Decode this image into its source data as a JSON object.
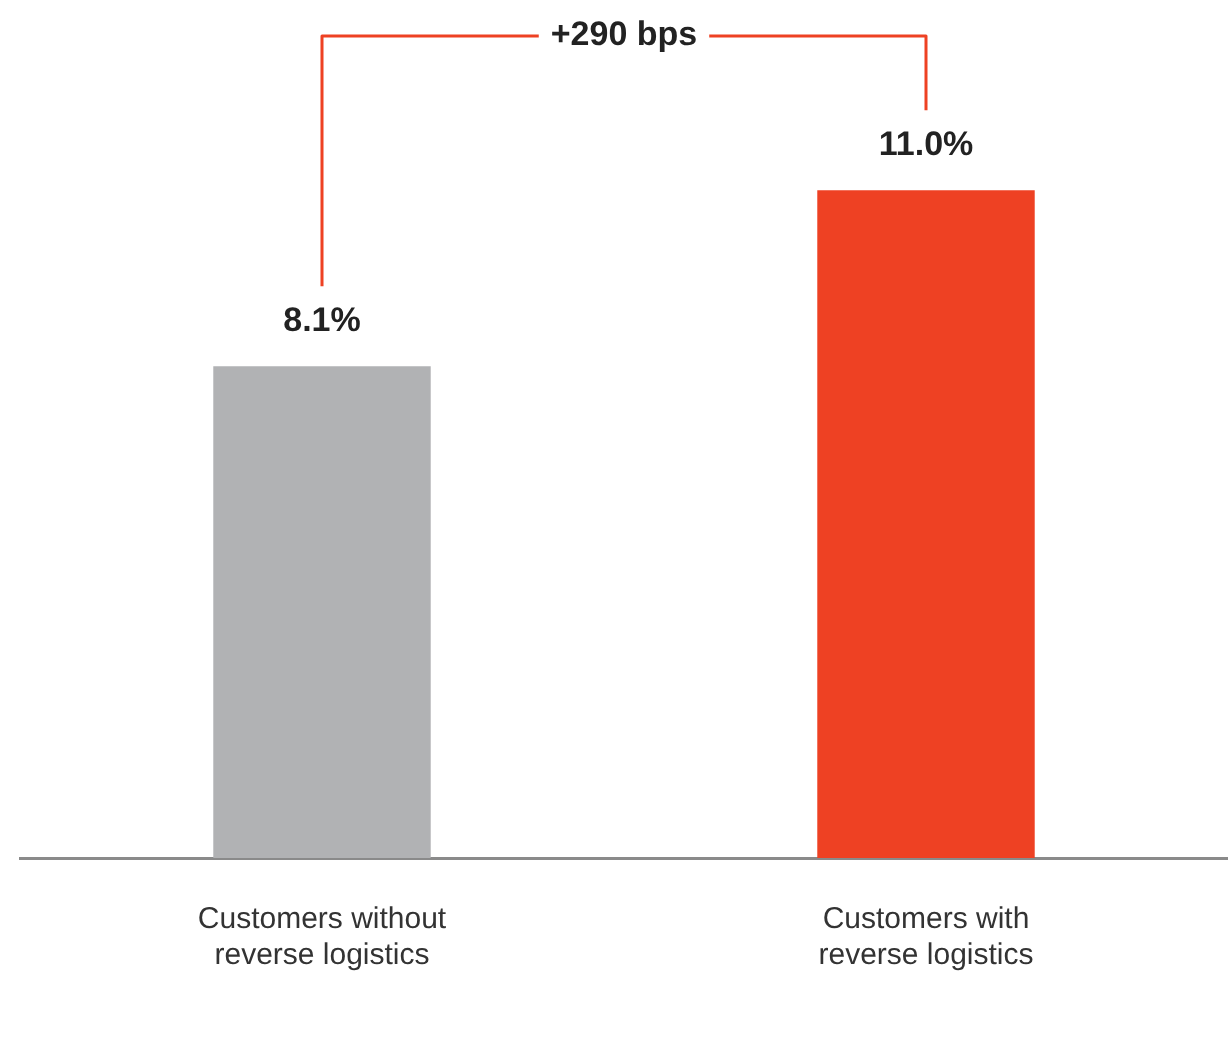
{
  "chart_data": {
    "type": "bar",
    "categories": [
      "Customers without reverse logistics",
      "Customers with reverse logistics"
    ],
    "values": [
      8.1,
      11.0
    ],
    "colors": [
      "#b1b2b4",
      "#ee4123"
    ],
    "value_labels": [
      "8.1%",
      "11.0%"
    ],
    "tick_labels": "x",
    "grid": false,
    "legend": false,
    "annotations": [
      "+290 bps"
    ]
  }
}
